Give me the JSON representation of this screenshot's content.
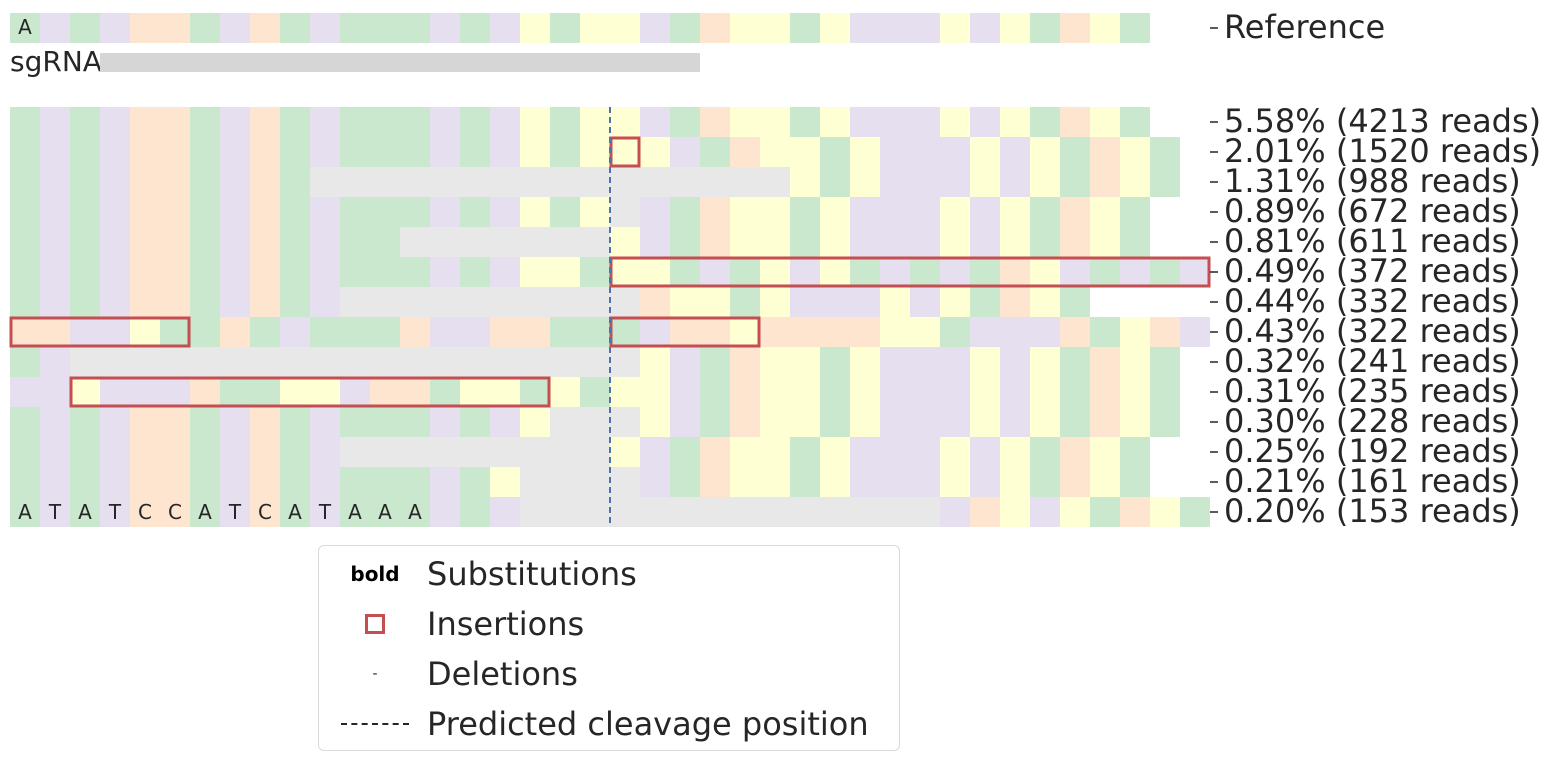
{
  "colors": {
    "A": "#cae8cd",
    "T": "#e5dfef",
    "C": "#fde5cf",
    "G": "#ffffd4",
    "deletion": "#e8e8e8",
    "sgRNA": "#d6d6d6",
    "insertion": "#c44e52",
    "cleavage": "#4c72b0",
    "text": "#262626"
  },
  "chart_data": {
    "type": "heatmap",
    "reference_label": "Reference",
    "reference_sequence": "ATATCCATCATAAATATGAGGTACGGAGTTTGTGACGA",
    "reference_sequence_text": "A",
    "sgrna_label": "sgRNA",
    "sgrna_span": [
      3,
      23
    ],
    "cleavage_position": 20,
    "rows": [
      {
        "label": "5.58% (4213 reads)",
        "percent": 5.58,
        "reads": 4213,
        "sequence": "ATATCCATCATAAATATGAGGTACGGAGTTTGTGACGA",
        "insertions": []
      },
      {
        "label": "2.01% (1520 reads)",
        "percent": 2.01,
        "reads": 1520,
        "sequence": "ATATCCATCATAAATATGAGGGTACGGAGTTTGTGACGA",
        "insertions": [
          [
            20,
            21
          ]
        ]
      },
      {
        "label": "1.31% (988 reads)",
        "percent": 1.31,
        "reads": 988,
        "sequence": "ATATCCATCA----------------GAGTTTGTGACGA",
        "insertions": []
      },
      {
        "label": "0.89% (672 reads)",
        "percent": 0.89,
        "reads": 672,
        "sequence": "ATATCCATCATAAATATGAG-TACGGAGTTTGTGACGA",
        "insertions": []
      },
      {
        "label": "0.81% (611 reads)",
        "percent": 0.81,
        "reads": 611,
        "sequence": "ATATCCATCATAA-------GTACGGAGTTTGTGACGA",
        "insertions": []
      },
      {
        "label": "0.49% (372 reads)",
        "percent": 0.49,
        "reads": 372,
        "sequence": "ATATCCATCATAAATATGGAGGATAGTGATATACGTATAT",
        "insertions": [
          [
            20,
            40
          ]
        ]
      },
      {
        "label": "0.44% (332 reads)",
        "percent": 0.44,
        "reads": 332,
        "sequence": "ATATCCATCAT----------CGGAGTTTGTGACGA",
        "insertions": []
      },
      {
        "label": "0.43% (322 reads)",
        "percent": 0.43,
        "reads": 322,
        "sequence": "CCTTGAACATAAACTTCCAAATCCGCCCCGGATTTCAGCTCG",
        "insertions": [
          [
            0,
            6
          ],
          [
            20,
            25
          ]
        ]
      },
      {
        "label": "0.32% (241 reads)",
        "percent": 0.32,
        "reads": 241,
        "sequence": "AT-------------------GTACGGAGTTTGTGACGA",
        "insertions": []
      },
      {
        "label": "0.31% (235 reads)",
        "percent": 0.31,
        "reads": 235,
        "sequence": "TTGTTTCAAGGTCCAGGAGAGGTACGGAGTTTGTGACGA",
        "insertions": [
          [
            2,
            18
          ]
        ]
      },
      {
        "label": "0.30% (228 reads)",
        "percent": 0.3,
        "reads": 228,
        "sequence": "ATATCCATCATAAATATG---GTACGGAGTTTGTGACGA",
        "insertions": []
      },
      {
        "label": "0.25% (192 reads)",
        "percent": 0.25,
        "reads": 192,
        "sequence": "ATATCCATCAT---------GTACGGAGTTTGTGACGA",
        "insertions": []
      },
      {
        "label": "0.21% (161 reads)",
        "percent": 0.21,
        "reads": 161,
        "sequence": "ATATCCATCATAAATAG----TACGGAGTTTGTGACGA",
        "insertions": []
      },
      {
        "label": "0.20% (153 reads)",
        "percent": 0.2,
        "reads": 153,
        "sequence": "ATATCCATCATAAATAT--------------TCGTGACGA",
        "insertions": [],
        "letters": "ATATCCATCATAAA"
      }
    ]
  },
  "legend": {
    "items": [
      {
        "symbol_text": "bold",
        "label": "Substitutions"
      },
      {
        "label": "Insertions"
      },
      {
        "symbol_text": "-",
        "label": "Deletions"
      },
      {
        "label": "Predicted cleavage position"
      }
    ]
  }
}
